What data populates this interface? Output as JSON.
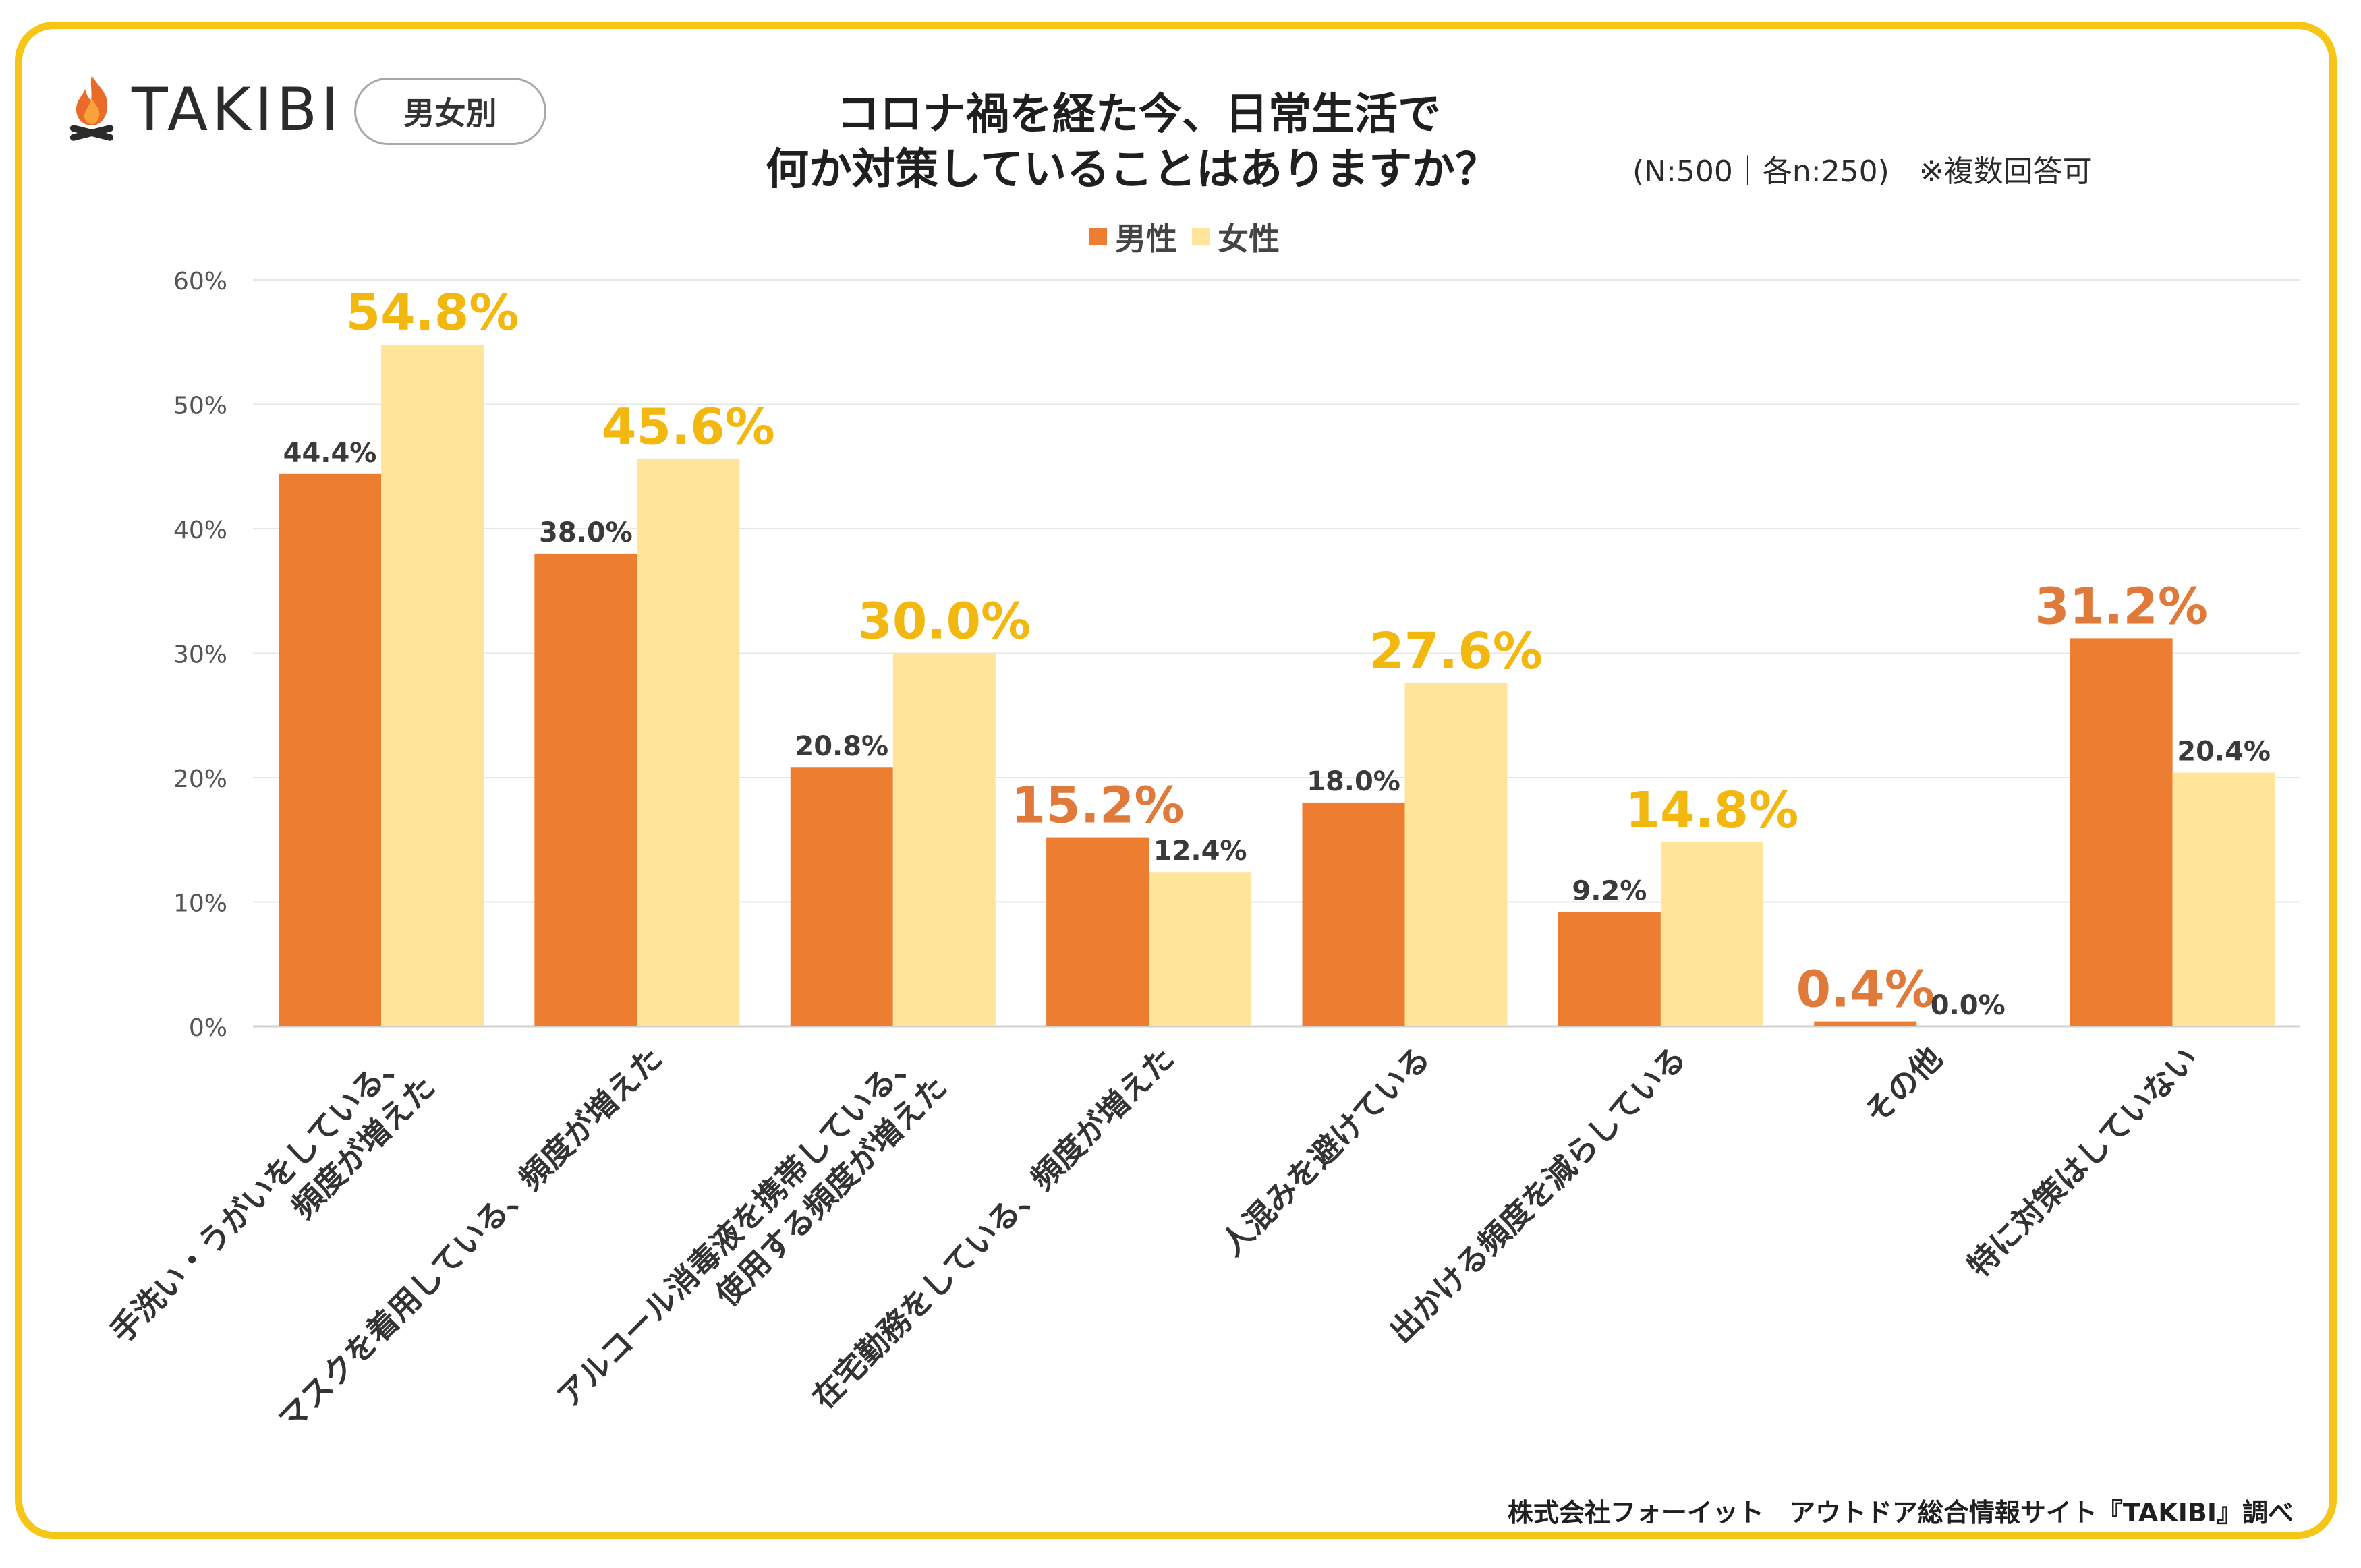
{
  "brand": {
    "name": "TAKIBI",
    "icon": "campfire-icon"
  },
  "category_tag": "男女別",
  "header": {
    "title_line1": "コロナ禍を経た今、日常生活で",
    "title_line2": "何か対策していることはありますか？",
    "subtitle": "(N:500｜各n:250)　※複数回答可"
  },
  "colors": {
    "male": "#ed7d31",
    "female": "#fee599",
    "highlight_male_label": "#e07a3a",
    "highlight_female_label": "#f2b810",
    "frame": "#f5c518",
    "normal_label": "#3a3a3a"
  },
  "chart_data": {
    "type": "bar",
    "title": "コロナ禍を経た今、日常生活で何か対策していることはありますか？",
    "xlabel": "",
    "ylabel": "",
    "ylim": [
      0,
      60
    ],
    "yticks": [
      "0%",
      "10%",
      "20%",
      "30%",
      "40%",
      "50%",
      "60%"
    ],
    "ytick_values": [
      0,
      10,
      20,
      30,
      40,
      50,
      60
    ],
    "grid": true,
    "legend_position": "top-center",
    "categories": [
      "手洗い・うがいをしている、\n頻度が増えた",
      "マスクを着用している、頻度が増えた",
      "アルコール消毒液を携帯している、\n使用する頻度が増えた",
      "在宅勤務をしている、頻度が増えた",
      "人混みを避けている",
      "出かける頻度を減らしている",
      "その他",
      "特に対策はしていない"
    ],
    "series": [
      {
        "name": "男性",
        "values": [
          44.4,
          38.0,
          20.8,
          15.2,
          18.0,
          9.2,
          0.4,
          31.2
        ],
        "labels": [
          "44.4%",
          "38.0%",
          "20.8%",
          "15.2%",
          "18.0%",
          "9.2%",
          "0.4%",
          "31.2%"
        ]
      },
      {
        "name": "女性",
        "values": [
          54.8,
          45.6,
          30.0,
          12.4,
          27.6,
          14.8,
          0.0,
          20.4
        ],
        "labels": [
          "54.8%",
          "45.6%",
          "30.0%",
          "12.4%",
          "27.6%",
          "14.8%",
          "0.0%",
          "20.4%"
        ]
      }
    ]
  },
  "source": "株式会社フォーイット　アウトドア総合情報サイト『TAKIBI』調べ"
}
